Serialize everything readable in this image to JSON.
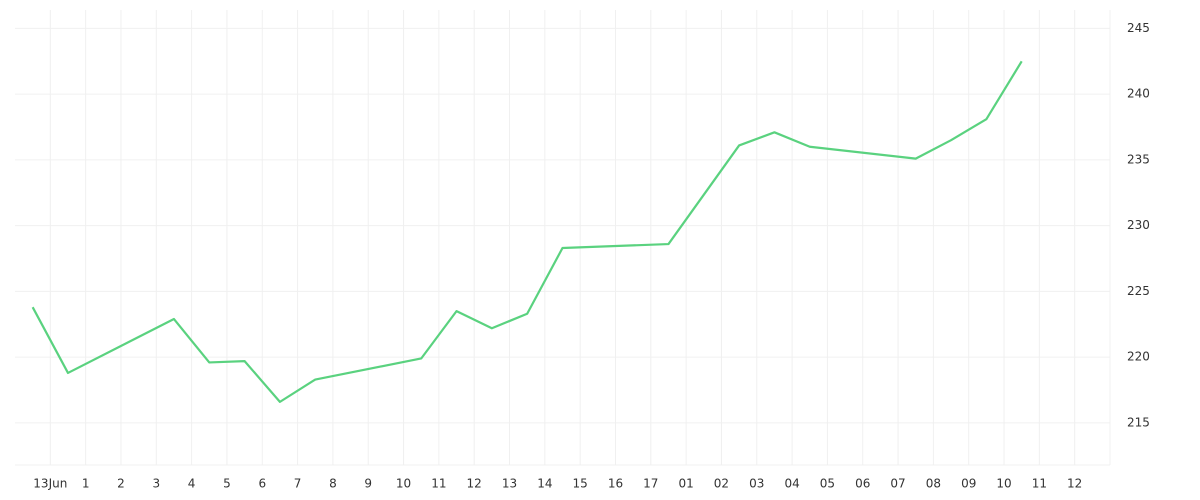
{
  "chart_data": {
    "type": "line",
    "x": [
      -0.5,
      0.5,
      3.5,
      4.5,
      5.5,
      6.5,
      7.5,
      10.5,
      11.5,
      12.5,
      13.5,
      14.5,
      17.5,
      19.5,
      20.5,
      21.5,
      24.5,
      25.5,
      26.5,
      27.5
    ],
    "series": [
      {
        "color": "#5ad27f",
        "values": [
          223.8,
          218.8,
          222.9,
          219.6,
          219.7,
          216.6,
          218.3,
          219.9,
          223.5,
          222.2,
          223.3,
          228.3,
          228.6,
          236.1,
          237.1,
          236.0,
          235.1,
          236.5,
          238.1,
          242.5
        ]
      }
    ],
    "xlim": [
      -1,
      30
    ],
    "xticks": [
      {
        "value": 0,
        "label": "13Jun"
      },
      1,
      2,
      3,
      4,
      5,
      6,
      7,
      8,
      9,
      10,
      11,
      12,
      13,
      14,
      15,
      16,
      17,
      {
        "value": 18,
        "label": "01"
      },
      {
        "value": 19,
        "label": "02"
      },
      {
        "value": 20,
        "label": "03"
      },
      {
        "value": 21,
        "label": "04"
      },
      {
        "value": 22,
        "label": "05"
      },
      {
        "value": 23,
        "label": "06"
      },
      {
        "value": 24,
        "label": "07"
      },
      {
        "value": 25,
        "label": "08"
      },
      {
        "value": 26,
        "label": "09"
      },
      {
        "value": 27,
        "label": "10"
      },
      {
        "value": 28,
        "label": "11"
      },
      {
        "value": 29,
        "label": "12"
      }
    ],
    "ylim": [
      211.8,
      246.4
    ],
    "yticks": [
      215,
      220,
      225,
      230,
      235,
      240,
      245
    ],
    "grid": true
  }
}
